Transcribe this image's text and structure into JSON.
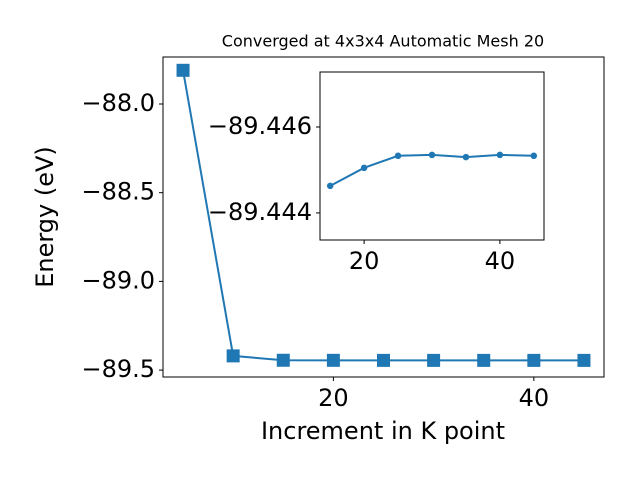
{
  "chart_data": [
    {
      "type": "line",
      "title": "Converged at 4x3x4 Automatic Mesh 20",
      "xlabel": "Increment in K point",
      "ylabel": "Energy (eV)",
      "x": [
        5,
        10,
        15,
        20,
        25,
        30,
        35,
        40,
        45
      ],
      "series": [
        {
          "color": "#1f77b4",
          "marker": "square",
          "values": [
            -87.81,
            -89.42,
            -89.4446,
            -89.445,
            -89.4453,
            -89.4453,
            -89.4453,
            -89.4453,
            -89.4453
          ]
        }
      ],
      "xlim": [
        3,
        47
      ],
      "xticks": [
        20,
        40
      ],
      "ylim": [
        -89.539,
        -87.735
      ],
      "yticks": [
        {
          "value": -89.5,
          "label": "−89.5"
        },
        {
          "value": -89.0,
          "label": "−89.0"
        },
        {
          "value": -88.5,
          "label": "−88.5"
        },
        {
          "value": -88.0,
          "label": "−88.0"
        }
      ]
    },
    {
      "type": "line",
      "x": [
        15,
        20,
        25,
        30,
        35,
        40,
        45
      ],
      "series": [
        {
          "color": "#1f77b4",
          "marker": "circle",
          "values": [
            -89.44463,
            -89.44505,
            -89.44533,
            -89.44535,
            -89.4453,
            -89.44535,
            -89.44533
          ]
        }
      ],
      "xlim": [
        13.5,
        46.5
      ],
      "xticks": [
        20,
        40
      ],
      "ylim": [
        -89.44337,
        -89.44728
      ],
      "yticks": [
        {
          "value": -89.444,
          "label": "−89.444"
        },
        {
          "value": -89.446,
          "label": "−89.446"
        }
      ]
    }
  ]
}
